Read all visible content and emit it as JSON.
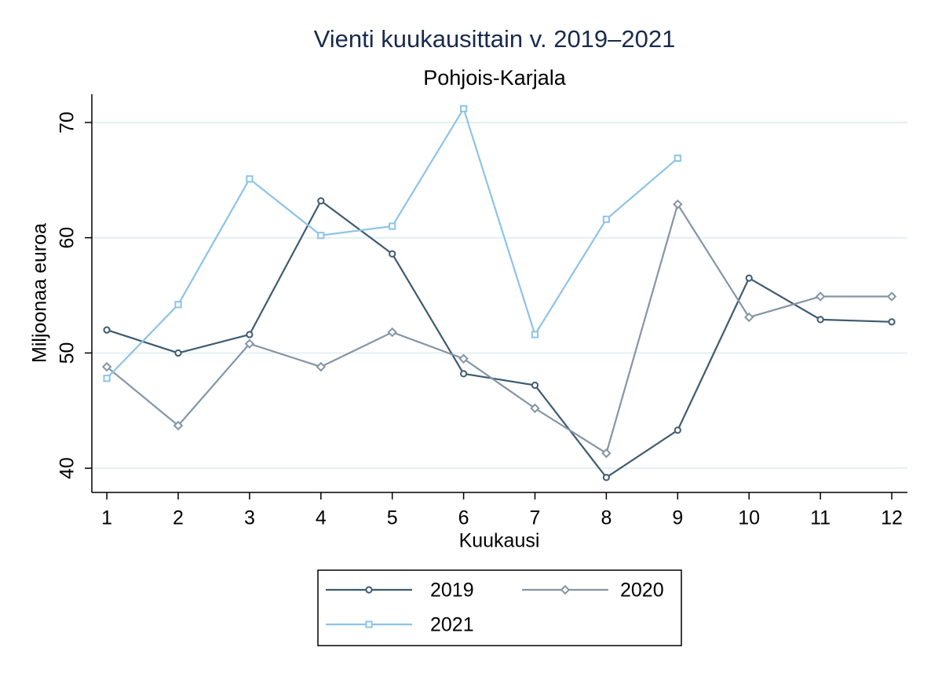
{
  "chart_data": {
    "type": "line",
    "title": "Vienti kuukausittain v. 2019–2021",
    "subtitle": "Pohjois-Karjala",
    "x_label": "Kuukausi",
    "y_label": "Miljoonaa euroa",
    "x": [
      1,
      2,
      3,
      4,
      5,
      6,
      7,
      8,
      9,
      10,
      11,
      12
    ],
    "series": [
      {
        "name": "2019",
        "color": "#3f5b70",
        "marker": "circle",
        "values": [
          52.0,
          50.0,
          51.6,
          63.2,
          58.6,
          48.2,
          47.2,
          39.2,
          43.3,
          56.5,
          52.9,
          52.7
        ]
      },
      {
        "name": "2020",
        "color": "#8595a6",
        "marker": "diamond",
        "values": [
          48.8,
          43.7,
          50.8,
          48.8,
          51.8,
          49.5,
          45.2,
          41.3,
          62.9,
          53.1,
          54.9,
          54.9
        ]
      },
      {
        "name": "2021",
        "color": "#8ec3e6",
        "marker": "square",
        "values": [
          47.8,
          54.2,
          65.1,
          60.2,
          61.0,
          71.2,
          51.6,
          61.6,
          66.9,
          null,
          null,
          null
        ]
      }
    ],
    "xlim": [
      0.79,
      12.22
    ],
    "xticks": [
      1,
      2,
      3,
      4,
      5,
      6,
      7,
      8,
      9,
      10,
      11,
      12
    ],
    "ylim": [
      37.9,
      72.45
    ],
    "yticks": [
      40,
      50,
      60,
      70
    ],
    "grid": true,
    "grid_color": "#e4eff1",
    "legend_position": "bottom"
  }
}
